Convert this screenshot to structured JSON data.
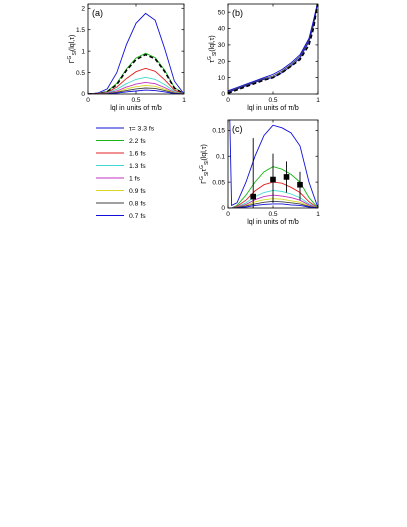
{
  "figure": {
    "legend": {
      "entries": [
        {
          "label": "τ= 3.3 fs",
          "color": "#1010d8"
        },
        {
          "label": "2.2 fs",
          "color": "#19b419"
        },
        {
          "label": "1.6 fs",
          "color": "#e02020"
        },
        {
          "label": "1.3 fs",
          "color": "#40d8d0"
        },
        {
          "label": "1 fs",
          "color": "#c030c0"
        },
        {
          "label": "0.9 fs",
          "color": "#d8d820"
        },
        {
          "label": "0.8 fs",
          "color": "#404040"
        },
        {
          "label": "0.7 fs",
          "color": "#1010d8"
        }
      ]
    }
  },
  "chart_data": [
    {
      "type": "line",
      "panel_label": "(a)",
      "xlabel": "lql in units of π/b",
      "ylabel": "Γ",
      "ylabel_sup": "G",
      "ylabel_sub": "Sl",
      "ylabel_rest": "(lql,τ)",
      "xlim": [
        0,
        1
      ],
      "ylim": [
        0,
        2.1
      ],
      "xticks": [
        0,
        0.5,
        1
      ],
      "xtick_labels": [
        "0",
        "0.5",
        "1"
      ],
      "yticks": [
        0,
        0.5,
        1,
        1.5,
        2
      ],
      "ytick_labels": [
        "0",
        "0.5",
        "1",
        "1.5",
        "2"
      ],
      "x": [
        0,
        0.1,
        0.2,
        0.3,
        0.4,
        0.5,
        0.6,
        0.7,
        0.8,
        0.9,
        1.0
      ],
      "series": [
        {
          "color": "#1010d8",
          "values": [
            0.0,
            0.02,
            0.12,
            0.5,
            1.15,
            1.65,
            1.88,
            1.72,
            1.05,
            0.3,
            0.0
          ]
        },
        {
          "color": "#19b419",
          "values": [
            0.0,
            0.01,
            0.06,
            0.25,
            0.58,
            0.84,
            0.95,
            0.85,
            0.55,
            0.15,
            0.0
          ]
        },
        {
          "color": "#000000",
          "dashed": true,
          "values": [
            0.0,
            0.01,
            0.05,
            0.22,
            0.55,
            0.8,
            0.92,
            0.82,
            0.52,
            0.14,
            0.0
          ]
        },
        {
          "color": "#e02020",
          "values": [
            0.0,
            0.01,
            0.04,
            0.16,
            0.36,
            0.52,
            0.6,
            0.53,
            0.33,
            0.09,
            0.0
          ]
        },
        {
          "color": "#40d8d0",
          "values": [
            0.0,
            0.0,
            0.03,
            0.11,
            0.24,
            0.34,
            0.39,
            0.34,
            0.22,
            0.06,
            0.0
          ]
        },
        {
          "color": "#c030c0",
          "values": [
            0.0,
            0.0,
            0.02,
            0.07,
            0.16,
            0.23,
            0.27,
            0.24,
            0.15,
            0.04,
            0.0
          ]
        },
        {
          "color": "#d8d820",
          "values": [
            0.0,
            0.0,
            0.01,
            0.05,
            0.12,
            0.17,
            0.2,
            0.18,
            0.11,
            0.03,
            0.0
          ]
        },
        {
          "color": "#404040",
          "values": [
            0.0,
            0.0,
            0.01,
            0.04,
            0.08,
            0.12,
            0.14,
            0.13,
            0.08,
            0.02,
            0.0
          ]
        },
        {
          "color": "#1010d8",
          "values": [
            0.0,
            0.0,
            0.0,
            0.02,
            0.05,
            0.07,
            0.09,
            0.08,
            0.05,
            0.01,
            0.0
          ]
        }
      ]
    },
    {
      "type": "line",
      "panel_label": "(b)",
      "xlabel": "lql in units of π/b",
      "ylabel": "τ",
      "ylabel_sup": "G",
      "ylabel_sub": "Sl",
      "ylabel_rest": "(lql,τ)",
      "xlim": [
        0,
        1
      ],
      "ylim": [
        0,
        55
      ],
      "xticks": [
        0,
        0.5,
        1
      ],
      "xtick_labels": [
        "0",
        "0.5",
        "1"
      ],
      "yticks": [
        0,
        10,
        20,
        30,
        40,
        50
      ],
      "ytick_labels": [
        "0",
        "10",
        "20",
        "30",
        "40",
        "50"
      ],
      "x": [
        0,
        0.1,
        0.2,
        0.3,
        0.4,
        0.5,
        0.6,
        0.7,
        0.8,
        0.9,
        0.95,
        1.0
      ],
      "series": [
        {
          "color": "#1010d8",
          "values": [
            1,
            3,
            5,
            7,
            9,
            10,
            13,
            17,
            22,
            32,
            42,
            57
          ]
        },
        {
          "color": "#404040",
          "values": [
            1.5,
            3.5,
            5.5,
            7.5,
            9.5,
            11,
            14,
            18,
            23,
            33,
            43,
            57
          ]
        },
        {
          "color": "#1010d8",
          "values": [
            2,
            4,
            6,
            8,
            10,
            12,
            15,
            19,
            24,
            34,
            45,
            57
          ]
        },
        {
          "color": "#000000",
          "dashed": true,
          "values": [
            0.5,
            2.5,
            4.5,
            6.5,
            8.5,
            10,
            13,
            17,
            21,
            30,
            40,
            57
          ]
        }
      ]
    },
    {
      "type": "line",
      "panel_label": "(c)",
      "xlabel": "lql in units of π/b",
      "ylabel": "Γ",
      "ylabel_sup": "G",
      "ylabel_sub": "Sl",
      "ylabel_mid": "τ",
      "ylabel_mid_sup": "G",
      "ylabel_mid_sub": "Sl",
      "ylabel_rest": "(lql,τ)",
      "xlim": [
        0,
        1
      ],
      "ylim": [
        0,
        0.17
      ],
      "xticks": [
        0,
        0.5,
        1
      ],
      "xtick_labels": [
        "0",
        "0.5",
        "1"
      ],
      "yticks": [
        0,
        0.05,
        0.1,
        0.15
      ],
      "ytick_labels": [
        "0",
        "0.05",
        "0.1",
        "0.15"
      ],
      "x": [
        0.0,
        0.02,
        0.04,
        0.1,
        0.2,
        0.3,
        0.4,
        0.5,
        0.6,
        0.7,
        0.8,
        0.9,
        1.0
      ],
      "series": [
        {
          "color": "#1010d8",
          "values": [
            0.17,
            0.17,
            0.005,
            0.01,
            0.05,
            0.1,
            0.14,
            0.16,
            0.155,
            0.145,
            0.12,
            0.05,
            0.0
          ]
        },
        {
          "color": "#19b419",
          "values": [
            0.0,
            0.0,
            0.0,
            0.005,
            0.025,
            0.05,
            0.07,
            0.08,
            0.075,
            0.065,
            0.05,
            0.02,
            0.0
          ]
        },
        {
          "color": "#e02020",
          "values": [
            0.0,
            0.0,
            0.0,
            0.003,
            0.015,
            0.033,
            0.045,
            0.05,
            0.048,
            0.04,
            0.03,
            0.012,
            0.0
          ]
        },
        {
          "color": "#40d8d0",
          "values": [
            0.0,
            0.0,
            0.0,
            0.002,
            0.01,
            0.022,
            0.03,
            0.034,
            0.032,
            0.027,
            0.02,
            0.008,
            0.0
          ]
        },
        {
          "color": "#c030c0",
          "values": [
            0.0,
            0.0,
            0.0,
            0.002,
            0.007,
            0.016,
            0.022,
            0.025,
            0.023,
            0.02,
            0.015,
            0.006,
            0.0
          ]
        },
        {
          "color": "#d8d820",
          "values": [
            0.0,
            0.0,
            0.0,
            0.001,
            0.005,
            0.012,
            0.016,
            0.018,
            0.017,
            0.014,
            0.011,
            0.004,
            0.0
          ]
        },
        {
          "color": "#404040",
          "values": [
            0.0,
            0.0,
            0.0,
            0.001,
            0.004,
            0.008,
            0.011,
            0.013,
            0.012,
            0.01,
            0.008,
            0.003,
            0.0
          ]
        },
        {
          "color": "#1010d8",
          "values": [
            0.0,
            0.0,
            0.0,
            0.0,
            0.002,
            0.005,
            0.007,
            0.008,
            0.008,
            0.006,
            0.005,
            0.002,
            0.0
          ]
        }
      ],
      "points": [
        {
          "x": 0.28,
          "y": 0.022,
          "ylow": 0.0,
          "yhigh": 0.135
        },
        {
          "x": 0.5,
          "y": 0.055,
          "ylow": 0.01,
          "yhigh": 0.105
        },
        {
          "x": 0.65,
          "y": 0.06,
          "ylow": 0.03,
          "yhigh": 0.09
        },
        {
          "x": 0.8,
          "y": 0.045,
          "ylow": 0.015,
          "yhigh": 0.07
        }
      ]
    }
  ]
}
